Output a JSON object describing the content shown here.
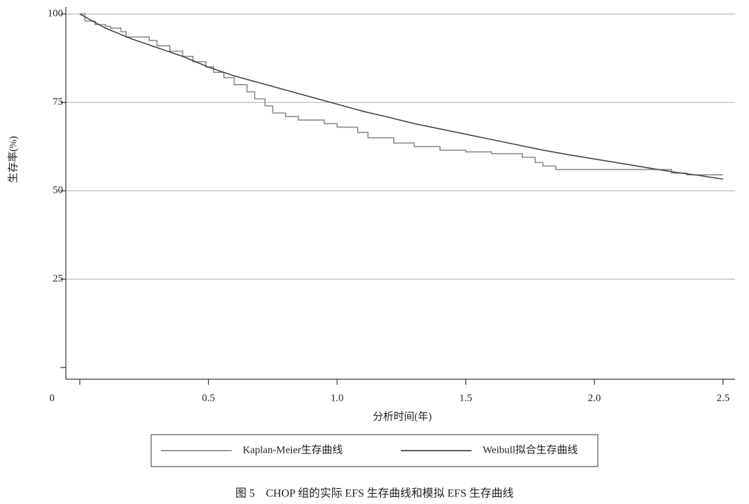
{
  "chart_data": {
    "type": "line",
    "caption": "图 5　CHOP 组的实际 EFS 生存曲线和模拟 EFS 生存曲线",
    "x_label": "分析时间(年)",
    "y_label": "生存率(%)",
    "xlim": [
      -0.054,
      2.547
    ],
    "ylim": [
      -3.3,
      102
    ],
    "xticks": [
      0,
      0.5,
      {
        "value": 1.0,
        "label": "1.0"
      },
      1.5,
      {
        "value": 2.0,
        "label": "2.0"
      },
      2.5
    ],
    "yticks": [
      0,
      25,
      50,
      75,
      100
    ],
    "grid": true,
    "legend": "bottom",
    "series": [
      {
        "name": "Kaplan-Meier生存曲线",
        "color": "#8a8a8a",
        "step": true,
        "x": [
          0,
          0.02,
          0.06,
          0.1,
          0.12,
          0.16,
          0.18,
          0.27,
          0.3,
          0.35,
          0.4,
          0.44,
          0.49,
          0.52,
          0.56,
          0.6,
          0.65,
          0.68,
          0.72,
          0.75,
          0.8,
          0.85,
          0.95,
          1.0,
          1.08,
          1.12,
          1.22,
          1.3,
          1.4,
          1.5,
          1.6,
          1.72,
          1.77,
          1.8,
          1.85,
          2.2,
          2.3,
          2.36,
          2.5
        ],
        "values": [
          100,
          98,
          97,
          96.5,
          96,
          95,
          93.5,
          92.5,
          91,
          89.5,
          88,
          86.5,
          85,
          83.5,
          82,
          80,
          78,
          76,
          74,
          72,
          71,
          70,
          69,
          68,
          66.5,
          65,
          63.5,
          62.5,
          61.5,
          61,
          60.5,
          59.5,
          58,
          57,
          56,
          56,
          55,
          54.5,
          54.5
        ]
      },
      {
        "name": "Weibull拟合生存曲线",
        "color": "#444444",
        "step": false,
        "x": [
          0,
          0.1,
          0.2,
          0.3,
          0.4,
          0.5,
          0.6,
          0.7,
          0.8,
          0.9,
          1.0,
          1.1,
          1.2,
          1.3,
          1.4,
          1.5,
          1.6,
          1.7,
          1.8,
          1.9,
          2.0,
          2.1,
          2.2,
          2.3,
          2.4,
          2.5
        ],
        "values": [
          100,
          96,
          93,
          90.5,
          88,
          85,
          82.5,
          80.5,
          78.5,
          76.5,
          74.5,
          72.5,
          70.8,
          69,
          67.5,
          66,
          64.5,
          63,
          61.5,
          60.2,
          59,
          57.8,
          56.6,
          55.4,
          54.4,
          53.3
        ]
      }
    ]
  }
}
